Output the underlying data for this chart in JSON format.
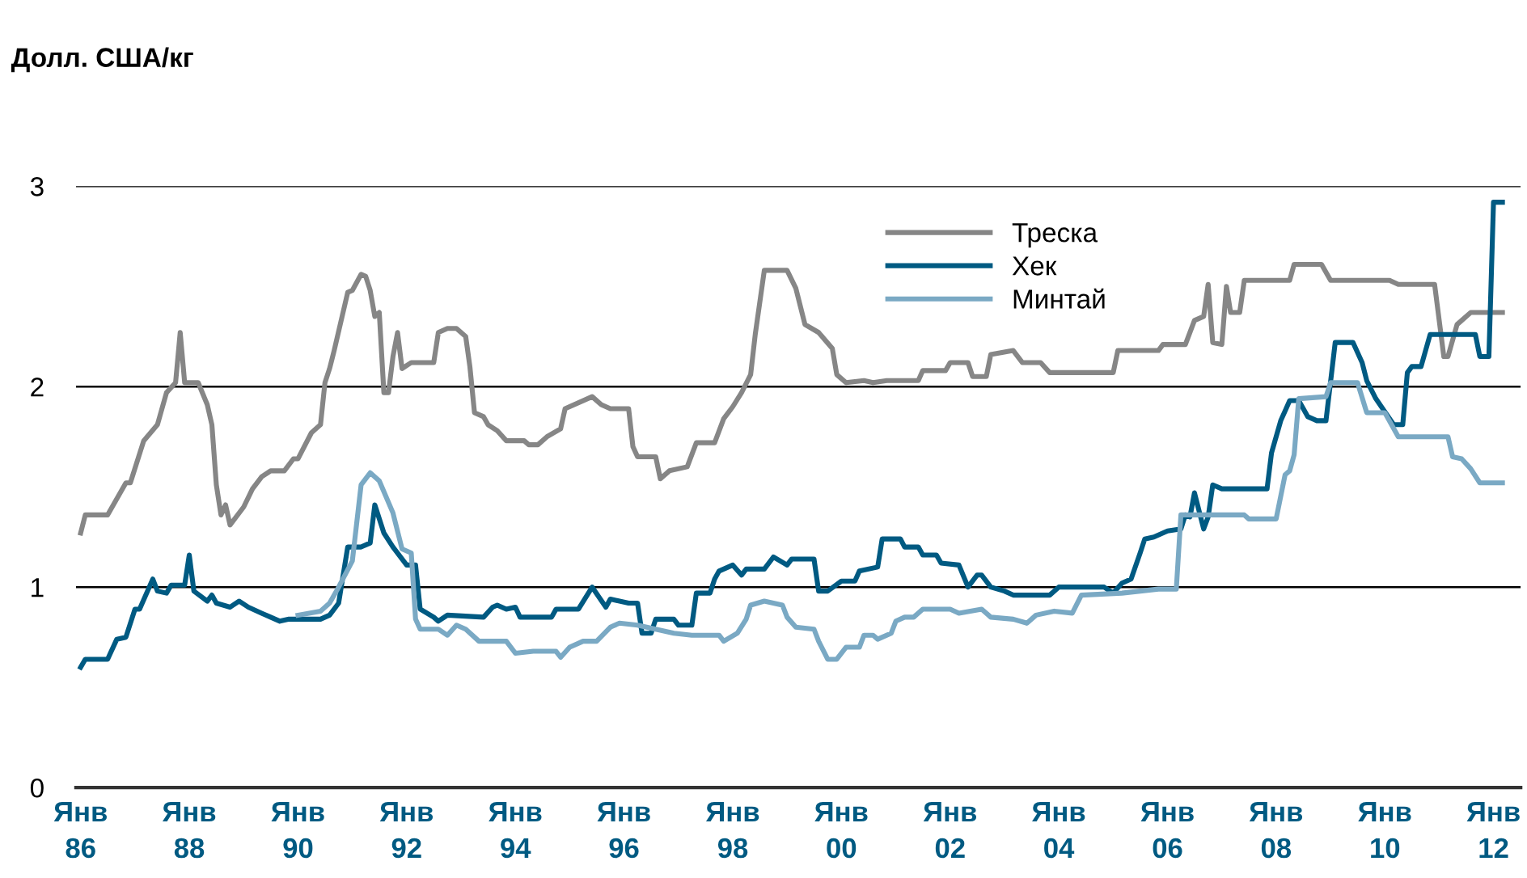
{
  "chart_data": {
    "type": "line",
    "ylabel": "Долл. США/кг",
    "xlim": [
      "1985-12",
      "2012-07"
    ],
    "ylim": [
      0,
      3
    ],
    "yticks": [
      0,
      1,
      2,
      3
    ],
    "xticks": [
      {
        "value": "1986-01",
        "label": "Янв\n86"
      },
      {
        "value": "1988-01",
        "label": "Янв\n88"
      },
      {
        "value": "1990-01",
        "label": "Янв\n90"
      },
      {
        "value": "1992-01",
        "label": "Янв\n92"
      },
      {
        "value": "1994-01",
        "label": "Янв\n94"
      },
      {
        "value": "1996-01",
        "label": "Янв\n96"
      },
      {
        "value": "1998-01",
        "label": "Янв\n98"
      },
      {
        "value": "2000-01",
        "label": "Янв\n00"
      },
      {
        "value": "2002-01",
        "label": "Янв\n02"
      },
      {
        "value": "2004-01",
        "label": "Янв\n04"
      },
      {
        "value": "2006-01",
        "label": "Янв\n06"
      },
      {
        "value": "2008-01",
        "label": "Янв\n08"
      },
      {
        "value": "2010-01",
        "label": "Янв\n10"
      },
      {
        "value": "2012-01",
        "label": "Янв\n12"
      }
    ],
    "grid": "y",
    "legend": "top right",
    "marker": "none",
    "line_style": "solid",
    "series": [
      {
        "name": "Треска",
        "color": "#868686",
        "x": [
          "1986-01",
          "1986-02",
          "1986-07",
          "1986-11",
          "1986-12",
          "1987-03",
          "1987-06",
          "1987-08",
          "1987-10",
          "1987-11",
          "1987-12",
          "1988-03",
          "1988-05",
          "1988-06",
          "1988-07",
          "1988-08",
          "1988-09",
          "1988-10",
          "1989-01",
          "1989-03",
          "1989-05",
          "1989-07",
          "1989-10",
          "1989-12",
          "1990-01",
          "1990-04",
          "1990-06",
          "1990-07",
          "1990-08",
          "1990-09",
          "1990-12",
          "1991-01",
          "1991-03",
          "1991-04",
          "1991-05",
          "1991-06",
          "1991-07",
          "1991-08",
          "1991-09",
          "1991-10",
          "1991-11",
          "1991-12",
          "1992-02",
          "1992-07",
          "1992-08",
          "1992-10",
          "1992-12",
          "1993-02",
          "1993-03",
          "1993-04",
          "1993-06",
          "1993-07",
          "1993-09",
          "1993-11",
          "1994-03",
          "1994-04",
          "1994-06",
          "1994-08",
          "1994-11",
          "1994-12",
          "1995-06",
          "1995-08",
          "1995-10",
          "1996-02",
          "1996-03",
          "1996-04",
          "1996-08",
          "1996-09",
          "1996-11",
          "1997-03",
          "1997-05",
          "1997-09",
          "1997-11",
          "1998-01",
          "1998-03",
          "1998-05",
          "1998-06",
          "1998-08",
          "1999-01",
          "1999-03",
          "1999-05",
          "1999-08",
          "1999-11",
          "1999-12",
          "2000-02",
          "2000-06",
          "2000-08",
          "2000-11",
          "2001-06",
          "2001-07",
          "2001-12",
          "2002-01",
          "2002-05",
          "2002-06",
          "2002-09",
          "2002-10",
          "2003-03",
          "2003-05",
          "2003-09",
          "2003-11",
          "2005-01",
          "2005-02",
          "2005-11",
          "2005-12",
          "2006-05",
          "2006-07",
          "2006-09",
          "2006-10",
          "2006-11",
          "2007-01",
          "2007-02",
          "2007-03",
          "2007-05",
          "2007-06",
          "2008-04",
          "2008-05",
          "2008-11",
          "2009-01",
          "2010-02",
          "2010-04",
          "2010-12",
          "2011-02",
          "2011-03",
          "2011-05",
          "2011-06",
          "2011-08",
          "2012-03"
        ],
        "values": [
          1.27,
          1.36,
          1.36,
          1.52,
          1.52,
          1.73,
          1.81,
          1.97,
          2.02,
          2.27,
          2.02,
          2.02,
          1.91,
          1.81,
          1.51,
          1.36,
          1.41,
          1.31,
          1.4,
          1.49,
          1.55,
          1.58,
          1.58,
          1.64,
          1.64,
          1.77,
          1.81,
          2.02,
          2.09,
          2.18,
          2.47,
          2.48,
          2.56,
          2.55,
          2.48,
          2.35,
          2.37,
          1.97,
          1.97,
          2.15,
          2.27,
          2.09,
          2.12,
          2.12,
          2.27,
          2.29,
          2.29,
          2.25,
          2.1,
          1.87,
          1.85,
          1.81,
          1.78,
          1.73,
          1.73,
          1.71,
          1.71,
          1.75,
          1.79,
          1.89,
          1.95,
          1.91,
          1.89,
          1.89,
          1.7,
          1.65,
          1.65,
          1.54,
          1.58,
          1.6,
          1.72,
          1.72,
          1.84,
          1.9,
          1.97,
          2.06,
          2.26,
          2.58,
          2.58,
          2.49,
          2.31,
          2.27,
          2.19,
          2.06,
          2.02,
          2.03,
          2.02,
          2.03,
          2.03,
          2.08,
          2.08,
          2.12,
          2.12,
          2.05,
          2.05,
          2.16,
          2.18,
          2.12,
          2.12,
          2.07,
          2.07,
          2.18,
          2.18,
          2.21,
          2.21,
          2.33,
          2.35,
          2.51,
          2.22,
          2.21,
          2.5,
          2.37,
          2.37,
          2.53,
          2.53,
          2.61,
          2.61,
          2.53,
          2.53,
          2.51,
          2.51,
          2.15,
          2.15,
          2.31,
          2.33,
          2.37,
          2.37
        ]
      },
      {
        "name": "Хек",
        "color": "#005a82",
        "x": [
          "1986-01",
          "1986-02",
          "1986-07",
          "1986-09",
          "1986-11",
          "1987-01",
          "1987-02",
          "1987-05",
          "1987-06",
          "1987-08",
          "1987-09",
          "1987-12",
          "1988-01",
          "1988-02",
          "1988-05",
          "1988-06",
          "1988-07",
          "1988-10",
          "1988-12",
          "1989-02",
          "1989-05",
          "1989-07",
          "1989-09",
          "1989-11",
          "1990-06",
          "1990-08",
          "1990-10",
          "1990-12",
          "1991-03",
          "1991-05",
          "1991-06",
          "1991-08",
          "1991-10",
          "1992-01",
          "1992-03",
          "1992-04",
          "1992-07",
          "1992-08",
          "1992-10",
          "1993-06",
          "1993-08",
          "1993-09",
          "1993-11",
          "1994-01",
          "1994-02",
          "1994-09",
          "1994-10",
          "1995-03",
          "1995-06",
          "1995-09",
          "1995-10",
          "1996-02",
          "1996-04",
          "1996-05",
          "1996-07",
          "1996-08",
          "1996-12",
          "1997-01",
          "1997-04",
          "1997-05",
          "1997-08",
          "1997-09",
          "1997-10",
          "1998-01",
          "1998-03",
          "1998-04",
          "1998-08",
          "1998-10",
          "1999-01",
          "1999-02",
          "1999-07",
          "1999-08",
          "1999-10",
          "2000-01",
          "2000-04",
          "2000-05",
          "2000-09",
          "2000-10",
          "2001-02",
          "2001-03",
          "2001-06",
          "2001-07",
          "2001-10",
          "2001-11",
          "2002-03",
          "2002-05",
          "2002-07",
          "2002-08",
          "2002-10",
          "2003-01",
          "2003-03",
          "2003-11",
          "2004-01",
          "2004-11",
          "2005-01",
          "2005-03",
          "2005-05",
          "2005-07",
          "2005-08",
          "2005-10",
          "2006-01",
          "2006-04",
          "2006-05",
          "2006-06",
          "2006-07",
          "2006-09",
          "2006-10",
          "2006-11",
          "2007-01",
          "2007-11",
          "2007-12",
          "2008-02",
          "2008-04",
          "2008-06",
          "2008-08",
          "2008-10",
          "2008-12",
          "2009-02",
          "2009-06",
          "2009-08",
          "2009-09",
          "2009-11",
          "2010-03",
          "2010-05",
          "2010-06",
          "2010-07",
          "2010-09",
          "2010-11",
          "2011-09",
          "2011-10",
          "2011-12",
          "2012-01",
          "2012-03"
        ],
        "values": [
          0.6,
          0.64,
          0.64,
          0.74,
          0.75,
          0.89,
          0.89,
          1.04,
          0.98,
          0.97,
          1.01,
          1.01,
          1.16,
          0.98,
          0.93,
          0.96,
          0.92,
          0.9,
          0.93,
          0.9,
          0.87,
          0.85,
          0.83,
          0.84,
          0.84,
          0.86,
          0.92,
          1.2,
          1.2,
          1.22,
          1.41,
          1.27,
          1.2,
          1.11,
          1.11,
          0.89,
          0.85,
          0.83,
          0.86,
          0.85,
          0.9,
          0.91,
          0.89,
          0.9,
          0.85,
          0.85,
          0.89,
          0.89,
          1.0,
          0.9,
          0.94,
          0.92,
          0.92,
          0.77,
          0.77,
          0.84,
          0.84,
          0.81,
          0.81,
          0.97,
          0.97,
          1.04,
          1.08,
          1.11,
          1.06,
          1.09,
          1.09,
          1.15,
          1.11,
          1.14,
          1.14,
          0.98,
          0.98,
          1.03,
          1.03,
          1.08,
          1.1,
          1.24,
          1.24,
          1.2,
          1.2,
          1.16,
          1.16,
          1.12,
          1.11,
          1.0,
          1.06,
          1.06,
          1.0,
          0.98,
          0.96,
          0.96,
          1.0,
          1.0,
          0.97,
          1.02,
          1.04,
          1.17,
          1.24,
          1.25,
          1.28,
          1.29,
          1.36,
          1.35,
          1.47,
          1.29,
          1.35,
          1.51,
          1.49,
          1.49,
          1.67,
          1.83,
          1.93,
          1.93,
          1.85,
          1.83,
          1.83,
          2.22,
          2.22,
          2.12,
          2.03,
          1.94,
          1.81,
          1.81,
          2.07,
          2.1,
          2.1,
          2.26,
          2.26,
          2.15,
          2.15,
          2.92,
          2.92
        ]
      },
      {
        "name": "Минтай",
        "color": "#7aa9c4",
        "x": [
          "1990-01",
          "1990-06",
          "1990-08",
          "1990-10",
          "1991-01",
          "1991-03",
          "1991-05",
          "1991-07",
          "1991-10",
          "1991-12",
          "1992-02",
          "1992-03",
          "1992-04",
          "1992-08",
          "1992-10",
          "1992-12",
          "1993-02",
          "1993-05",
          "1993-11",
          "1994-01",
          "1994-05",
          "1994-10",
          "1994-11",
          "1995-01",
          "1995-04",
          "1995-07",
          "1995-10",
          "1995-12",
          "1996-04",
          "1996-08",
          "1996-12",
          "1997-04",
          "1997-10",
          "1997-11",
          "1998-02",
          "1998-04",
          "1998-05",
          "1998-08",
          "1998-12",
          "1999-01",
          "1999-03",
          "1999-07",
          "1999-08",
          "1999-10",
          "1999-12",
          "2000-02",
          "2000-05",
          "2000-06",
          "2000-08",
          "2000-09",
          "2000-12",
          "2001-01",
          "2001-03",
          "2001-05",
          "2001-07",
          "2002-01",
          "2002-03",
          "2002-08",
          "2002-10",
          "2003-03",
          "2003-06",
          "2003-08",
          "2003-12",
          "2004-04",
          "2004-06",
          "2005-03",
          "2005-11",
          "2006-03",
          "2006-04",
          "2007-06",
          "2007-07",
          "2008-01",
          "2008-03",
          "2008-04",
          "2008-05",
          "2008-06",
          "2008-12",
          "2009-01",
          "2009-07",
          "2009-09",
          "2010-01",
          "2010-04",
          "2011-03",
          "2011-04",
          "2011-06",
          "2011-08",
          "2011-10",
          "2012-03"
        ],
        "values": [
          0.86,
          0.88,
          0.92,
          1.0,
          1.13,
          1.51,
          1.57,
          1.53,
          1.37,
          1.19,
          1.17,
          0.84,
          0.79,
          0.79,
          0.76,
          0.81,
          0.79,
          0.73,
          0.73,
          0.67,
          0.68,
          0.68,
          0.65,
          0.7,
          0.73,
          0.73,
          0.8,
          0.82,
          0.81,
          0.79,
          0.77,
          0.76,
          0.76,
          0.73,
          0.77,
          0.84,
          0.91,
          0.93,
          0.91,
          0.85,
          0.8,
          0.79,
          0.73,
          0.64,
          0.64,
          0.7,
          0.7,
          0.76,
          0.76,
          0.74,
          0.77,
          0.83,
          0.85,
          0.85,
          0.89,
          0.89,
          0.87,
          0.89,
          0.85,
          0.84,
          0.82,
          0.86,
          0.88,
          0.87,
          0.96,
          0.97,
          0.99,
          0.99,
          1.36,
          1.36,
          1.34,
          1.34,
          1.56,
          1.58,
          1.66,
          1.94,
          1.95,
          2.02,
          2.02,
          1.87,
          1.87,
          1.75,
          1.75,
          1.65,
          1.64,
          1.59,
          1.52,
          1.52
        ]
      }
    ]
  }
}
